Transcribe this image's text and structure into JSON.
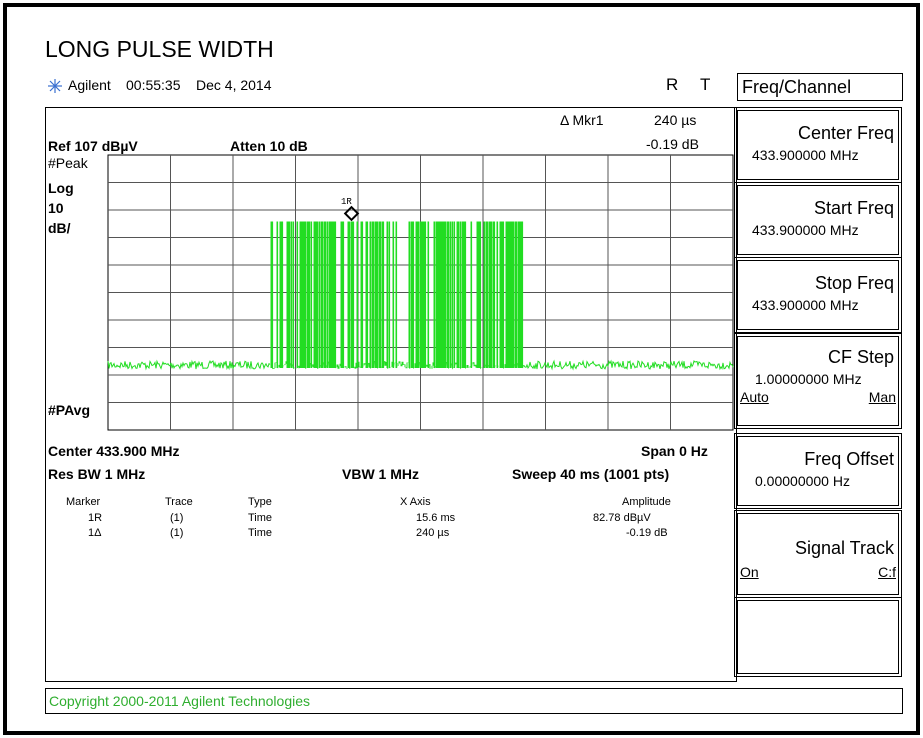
{
  "title": "LONG PULSE WIDTH",
  "header": {
    "brand": "Agilent",
    "time": "00:55:35",
    "date": "Dec 4, 2014",
    "r": "R",
    "t": "T"
  },
  "marker_readout": {
    "label": "Δ Mkr1",
    "x": "240 µs",
    "y": "-0.19 dB"
  },
  "display": {
    "ref": "Ref 107 dBµV",
    "atten": "Atten 10 dB",
    "detector": "#Peak",
    "scale_type": "Log",
    "scale": "10",
    "scale_unit": "dB/",
    "avg": "#PAvg",
    "marker_label": "1R"
  },
  "footer": {
    "center": "Center 433.900 MHz",
    "span": "Span 0 Hz",
    "rbw": "Res BW 1 MHz",
    "vbw": "VBW 1 MHz",
    "sweep": "Sweep 40 ms (1001 pts)"
  },
  "marker_table": {
    "headers": [
      "Marker",
      "Trace",
      "Type",
      "X Axis",
      "Amplitude"
    ],
    "rows": [
      [
        "1R",
        "(1)",
        "Time",
        "15.6 ms",
        "82.78 dBµV"
      ],
      [
        "1Δ",
        "(1)",
        "Time",
        "240 µs",
        "-0.19 dB"
      ]
    ]
  },
  "menu": {
    "title": "Freq/Channel",
    "buttons": [
      {
        "label": "Center Freq",
        "value": "433.900000 MHz"
      },
      {
        "label": "Start Freq",
        "value": "433.900000 MHz"
      },
      {
        "label": "Stop Freq",
        "value": "433.900000 MHz"
      },
      {
        "label": "CF Step",
        "value": "1.00000000 MHz",
        "options": [
          "Auto",
          "Man"
        ]
      },
      {
        "label": "Freq Offset",
        "value": "0.00000000  Hz"
      },
      {
        "label": "Signal Track",
        "options": [
          "On",
          "C:f"
        ]
      }
    ]
  },
  "copyright": "Copyright 2000-2011 Agilent Technologies"
}
